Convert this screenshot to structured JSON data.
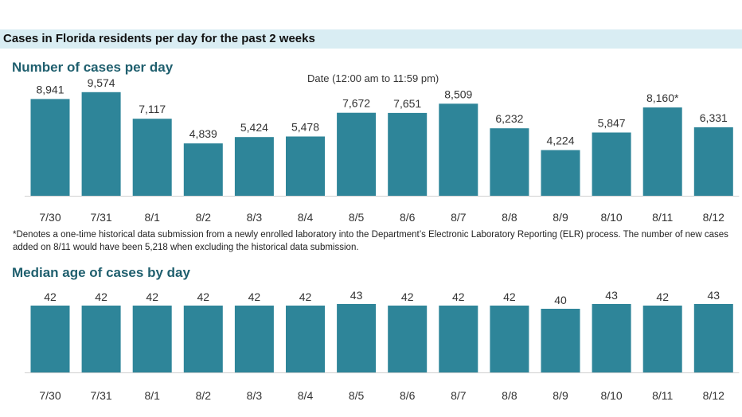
{
  "header": {
    "title": "Cases in Florida residents per day for the past 2 weeks"
  },
  "cases_section": {
    "title": "Number of cases per day",
    "axis_caption": "Date (12:00 am to 11:59 pm)",
    "footnote": "*Denotes a one-time historical data submission from a newly enrolled laboratory into the Department’s Electronic Laboratory Reporting (ELR) process. The number of new cases added on 8/11 would have been 5,218 when excluding the historical data submission."
  },
  "age_section": {
    "title": "Median age of cases by day"
  },
  "colors": {
    "bar": "#2e8599",
    "header_band": "#d9edf3",
    "section_title": "#1f5f6e"
  },
  "chart_data": [
    {
      "type": "bar",
      "title": "Number of cases per day",
      "xlabel": "Date (12:00 am to 11:59 pm)",
      "ylabel": "",
      "categories": [
        "7/30",
        "7/31",
        "8/1",
        "8/2",
        "8/3",
        "8/4",
        "8/5",
        "8/6",
        "8/7",
        "8/8",
        "8/9",
        "8/10",
        "8/11",
        "8/12"
      ],
      "values": [
        8941,
        9574,
        7117,
        4839,
        5424,
        5478,
        7672,
        7651,
        8509,
        6232,
        4224,
        5847,
        8160,
        6331
      ],
      "data_labels": [
        "8,941",
        "9,574",
        "7,117",
        "4,839",
        "5,424",
        "5,478",
        "7,672",
        "7,651",
        "8,509",
        "6,232",
        "4,224",
        "5,847",
        "8,160*",
        "6,331"
      ],
      "ylim": [
        0,
        10000
      ],
      "grid": false,
      "legend": "none"
    },
    {
      "type": "bar",
      "title": "Median age of cases by day",
      "xlabel": "",
      "ylabel": "",
      "categories": [
        "7/30",
        "7/31",
        "8/1",
        "8/2",
        "8/3",
        "8/4",
        "8/5",
        "8/6",
        "8/7",
        "8/8",
        "8/9",
        "8/10",
        "8/11",
        "8/12"
      ],
      "values": [
        42,
        42,
        42,
        42,
        42,
        42,
        43,
        42,
        42,
        42,
        40,
        43,
        42,
        43
      ],
      "data_labels": [
        "42",
        "42",
        "42",
        "42",
        "42",
        "42",
        "43",
        "42",
        "42",
        "42",
        "40",
        "43",
        "42",
        "43"
      ],
      "ylim": [
        0,
        43
      ],
      "grid": false,
      "legend": "none"
    }
  ]
}
